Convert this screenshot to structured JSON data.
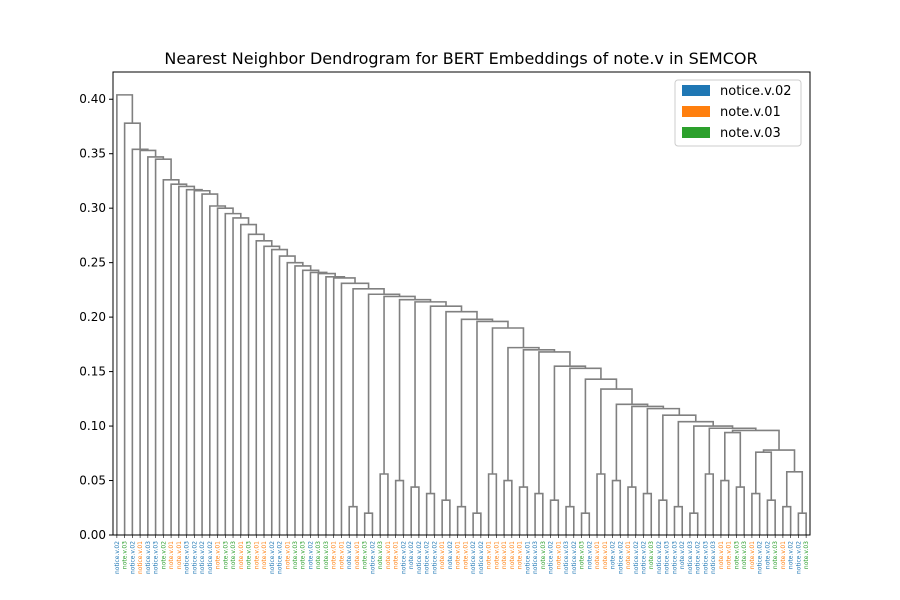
{
  "chart_data": {
    "type": "dendrogram",
    "title": "Nearest Neighbor Dendrogram for BERT Embeddings of note.v in SEMCOR",
    "xlabel": "",
    "ylabel": "",
    "ylim": [
      0,
      0.425
    ],
    "yticks": [
      0.0,
      0.05,
      0.1,
      0.15,
      0.2,
      0.25,
      0.3,
      0.35,
      0.4
    ],
    "ytick_labels": [
      "0.00",
      "0.05",
      "0.10",
      "0.15",
      "0.20",
      "0.25",
      "0.30",
      "0.35",
      "0.40"
    ],
    "grid": false,
    "legend_position": "top-right",
    "legend": [
      {
        "label": "notice.v.02",
        "color": "#1f77b4"
      },
      {
        "label": "note.v.01",
        "color": "#ff7f0e"
      },
      {
        "label": "note.v.03",
        "color": "#2ca02c"
      }
    ],
    "link_color": "#808080",
    "leaves": [
      "notice.v.02",
      "note.v.03",
      "notice.v.02",
      "notice.v.01",
      "notice.v.03",
      "notice.v.03",
      "note.v.02",
      "note.v.01",
      "note.v.01",
      "notice.v.03",
      "notice.v.02",
      "notice.v.02",
      "notice.v.02",
      "note.v.01",
      "note.v.03",
      "note.v.03",
      "note.v.01",
      "note.v.03",
      "note.v.01",
      "note.v.01",
      "notice.v.02",
      "notice.v.02",
      "note.v.01",
      "note.v.03",
      "note.v.03",
      "note.v.02",
      "note.v.03",
      "note.v.03",
      "note.v.01",
      "note.v.01",
      "note.v.02",
      "note.v.01",
      "note.v.03",
      "notice.v.02",
      "note.v.03",
      "note.v.01",
      "note.v.01",
      "notice.v.02",
      "note.v.02",
      "notice.v.02",
      "notice.v.02",
      "notice.v.02",
      "note.v.01",
      "note.v.02",
      "note.v.01",
      "note.v.01",
      "notice.v.02",
      "notice.v.02",
      "note.v.01",
      "note.v.01",
      "note.v.01",
      "note.v.01",
      "note.v.01",
      "notice.v.01",
      "notice.v.03",
      "note.v.03",
      "notice.v.02",
      "note.v.01",
      "notice.v.03",
      "notice.v.02",
      "note.v.03",
      "note.v.02",
      "note.v.01",
      "note.v.01",
      "note.v.02",
      "notice.v.02",
      "note.v.01",
      "notice.v.02",
      "notice.v.02",
      "note.v.03",
      "notice.v.02",
      "notice.v.03",
      "notice.v.03",
      "note.v.02",
      "notice.v.03",
      "notice.v.02",
      "notice.v.03",
      "notice.v.03",
      "note.v.01",
      "note.v.01",
      "note.v.03",
      "note.v.03",
      "note.v.01",
      "notice.v.02",
      "note.v.02",
      "note.v.03",
      "note.v.01",
      "note.v.02",
      "notice.v.02",
      "note.v.03"
    ],
    "leaf_colors": [
      "#1f77b4",
      "#2ca02c",
      "#1f77b4",
      "#ff7f0e",
      "#1f77b4",
      "#1f77b4",
      "#2ca02c",
      "#ff7f0e",
      "#ff7f0e",
      "#1f77b4",
      "#1f77b4",
      "#1f77b4",
      "#1f77b4",
      "#ff7f0e",
      "#2ca02c",
      "#2ca02c",
      "#ff7f0e",
      "#2ca02c",
      "#ff7f0e",
      "#ff7f0e",
      "#1f77b4",
      "#1f77b4",
      "#ff7f0e",
      "#2ca02c",
      "#2ca02c",
      "#1f77b4",
      "#2ca02c",
      "#2ca02c",
      "#ff7f0e",
      "#ff7f0e",
      "#1f77b4",
      "#ff7f0e",
      "#2ca02c",
      "#1f77b4",
      "#2ca02c",
      "#ff7f0e",
      "#ff7f0e",
      "#1f77b4",
      "#1f77b4",
      "#1f77b4",
      "#1f77b4",
      "#1f77b4",
      "#ff7f0e",
      "#1f77b4",
      "#ff7f0e",
      "#ff7f0e",
      "#1f77b4",
      "#1f77b4",
      "#ff7f0e",
      "#ff7f0e",
      "#ff7f0e",
      "#ff7f0e",
      "#ff7f0e",
      "#1f77b4",
      "#1f77b4",
      "#2ca02c",
      "#1f77b4",
      "#ff7f0e",
      "#1f77b4",
      "#1f77b4",
      "#2ca02c",
      "#1f77b4",
      "#ff7f0e",
      "#ff7f0e",
      "#1f77b4",
      "#1f77b4",
      "#ff7f0e",
      "#1f77b4",
      "#1f77b4",
      "#2ca02c",
      "#1f77b4",
      "#1f77b4",
      "#1f77b4",
      "#1f77b4",
      "#1f77b4",
      "#1f77b4",
      "#1f77b4",
      "#1f77b4",
      "#ff7f0e",
      "#ff7f0e",
      "#2ca02c",
      "#2ca02c",
      "#ff7f0e",
      "#1f77b4",
      "#1f77b4",
      "#2ca02c",
      "#ff7f0e",
      "#1f77b4",
      "#1f77b4",
      "#2ca02c"
    ],
    "merge_heights": [
      0.404,
      0.378,
      0.354,
      0.353,
      0.347,
      0.345,
      0.32,
      0.326,
      0.322,
      0.317,
      0.316,
      0.313,
      0.302,
      0.3,
      0.295,
      0.291,
      0.285,
      0.276,
      0.27,
      0.265,
      0.262,
      0.256,
      0.25,
      0.247,
      0.243,
      0.241,
      0.24,
      0.237,
      0.236,
      0.231,
      0.226,
      0.221,
      0.219,
      0.216,
      0.214,
      0.21,
      0.205,
      0.198,
      0.196,
      0.19,
      0.172,
      0.17,
      0.168,
      0.155,
      0.153,
      0.143,
      0.134,
      0.12,
      0.118,
      0.116,
      0.11,
      0.104,
      0.097,
      0.074,
      0.069,
      0.055
    ]
  }
}
